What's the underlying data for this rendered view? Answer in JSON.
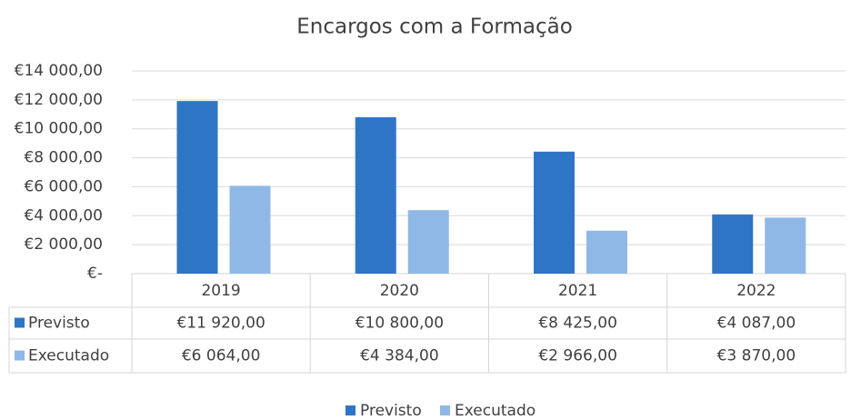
{
  "chart_data": {
    "type": "bar",
    "title": "Encargos com a Formação",
    "categories": [
      "2019",
      "2020",
      "2021",
      "2022"
    ],
    "series": [
      {
        "name": "Previsto",
        "color": "#2f75c5",
        "values": [
          11920,
          10800,
          8425,
          4087
        ],
        "value_labels": [
          "€11 920,00",
          "€10 800,00",
          "€8 425,00",
          "€4 087,00"
        ]
      },
      {
        "name": "Executado",
        "color": "#8fb8e6",
        "values": [
          6064,
          4384,
          2966,
          3870
        ],
        "value_labels": [
          "€6 064,00",
          "€4 384,00",
          "€2 966,00",
          "€3 870,00"
        ]
      }
    ],
    "ylim": [
      0,
      14000
    ],
    "yticks": [
      {
        "value": 0,
        "label": "€-"
      },
      {
        "value": 2000,
        "label": "€2 000,00"
      },
      {
        "value": 4000,
        "label": "€4 000,00"
      },
      {
        "value": 6000,
        "label": "€6 000,00"
      },
      {
        "value": 8000,
        "label": "€8 000,00"
      },
      {
        "value": 10000,
        "label": "€10 000,00"
      },
      {
        "value": 12000,
        "label": "€12 000,00"
      },
      {
        "value": 14000,
        "label": "€14 000,00"
      }
    ],
    "grid": true,
    "legend": "bottom"
  }
}
